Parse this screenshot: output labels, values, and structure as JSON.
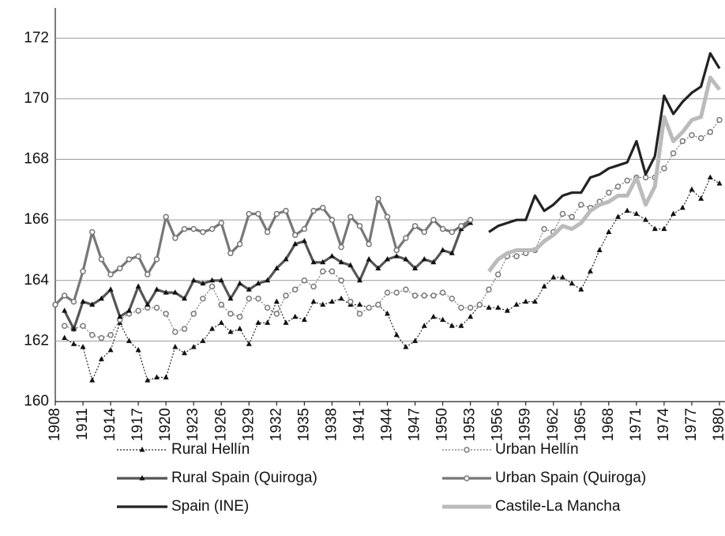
{
  "chart_data": {
    "type": "line",
    "x": [
      1908,
      1909,
      1910,
      1911,
      1912,
      1913,
      1914,
      1915,
      1916,
      1917,
      1918,
      1919,
      1920,
      1921,
      1922,
      1923,
      1924,
      1925,
      1926,
      1927,
      1928,
      1929,
      1930,
      1931,
      1932,
      1933,
      1934,
      1935,
      1936,
      1937,
      1938,
      1939,
      1940,
      1941,
      1942,
      1943,
      1944,
      1945,
      1946,
      1947,
      1948,
      1949,
      1950,
      1951,
      1952,
      1953,
      1954,
      1955,
      1956,
      1957,
      1958,
      1959,
      1960,
      1961,
      1962,
      1963,
      1964,
      1965,
      1966,
      1967,
      1968,
      1969,
      1970,
      1971,
      1972,
      1973,
      1974,
      1975,
      1976,
      1977,
      1978,
      1979,
      1980
    ],
    "xlim": [
      1908,
      1980.6
    ],
    "xticks": [
      1908,
      1911,
      1914,
      1917,
      1920,
      1923,
      1926,
      1929,
      1932,
      1935,
      1938,
      1941,
      1944,
      1947,
      1950,
      1953,
      1956,
      1959,
      1962,
      1965,
      1968,
      1971,
      1974,
      1977,
      1980
    ],
    "ylim": [
      160,
      173
    ],
    "yticks": [
      160,
      162,
      164,
      166,
      168,
      170,
      172
    ],
    "grid": true,
    "legend": "bottom",
    "series": [
      {
        "name": "Rural Hellín",
        "color": "#222222",
        "style": "dotted",
        "marker": "triangle",
        "values": [
          null,
          162.1,
          161.9,
          161.8,
          160.7,
          161.4,
          161.7,
          162.6,
          162.0,
          161.7,
          160.7,
          160.8,
          160.8,
          161.8,
          161.6,
          161.8,
          162.0,
          162.4,
          162.6,
          162.3,
          162.4,
          161.9,
          162.6,
          162.6,
          163.3,
          162.6,
          162.8,
          162.7,
          163.3,
          163.2,
          163.3,
          163.4,
          163.2,
          163.2,
          163.1,
          163.2,
          162.9,
          162.2,
          161.8,
          162.0,
          162.5,
          162.8,
          162.7,
          162.5,
          162.5,
          162.8,
          163.2,
          163.1,
          163.1,
          163.0,
          163.2,
          163.3,
          163.3,
          163.8,
          164.1,
          164.1,
          163.9,
          163.7,
          164.3,
          165.0,
          165.6,
          166.1,
          166.3,
          166.2,
          166.0,
          165.7,
          165.7,
          166.2,
          166.4,
          167.0,
          166.7,
          167.4,
          167.2
        ]
      },
      {
        "name": "Urban Hellín",
        "color": "#777777",
        "style": "dotted",
        "marker": "circle",
        "values": [
          null,
          162.5,
          162.4,
          162.5,
          162.2,
          162.1,
          162.2,
          162.7,
          162.9,
          163.0,
          163.1,
          163.1,
          162.9,
          162.3,
          162.4,
          162.9,
          163.4,
          163.8,
          163.2,
          162.9,
          162.8,
          163.4,
          163.4,
          163.1,
          162.9,
          163.5,
          163.7,
          164.0,
          163.8,
          164.3,
          164.3,
          164.0,
          163.3,
          162.9,
          163.1,
          163.2,
          163.6,
          163.6,
          163.7,
          163.5,
          163.5,
          163.5,
          163.6,
          163.4,
          163.1,
          163.1,
          163.2,
          163.7,
          164.2,
          164.8,
          164.8,
          164.9,
          165.0,
          165.7,
          165.6,
          166.2,
          166.1,
          166.5,
          166.4,
          166.6,
          166.9,
          167.1,
          167.3,
          167.4,
          167.4,
          167.4,
          167.7,
          168.2,
          168.6,
          168.8,
          168.7,
          168.9,
          169.3
        ]
      },
      {
        "name": "Rural Spain (Quiroga)",
        "color": "#555555",
        "style": "solid",
        "marker": "triangle",
        "values": [
          null,
          163.0,
          162.4,
          163.3,
          163.2,
          163.4,
          163.7,
          162.8,
          163.0,
          163.8,
          163.2,
          163.7,
          163.6,
          163.6,
          163.4,
          164.0,
          163.9,
          164.0,
          164.0,
          163.4,
          163.9,
          163.7,
          163.9,
          164.0,
          164.4,
          164.7,
          165.2,
          165.3,
          164.6,
          164.6,
          164.8,
          164.6,
          164.5,
          164.0,
          164.7,
          164.4,
          164.7,
          164.8,
          164.7,
          164.4,
          164.7,
          164.6,
          165.0,
          164.9,
          165.7,
          165.9,
          null,
          null,
          null,
          null,
          null,
          null,
          null,
          null,
          null,
          null,
          null,
          null,
          null,
          null,
          null,
          null,
          null,
          null,
          null,
          null,
          null,
          null,
          null,
          null,
          null,
          null,
          null
        ]
      },
      {
        "name": "Urban Spain (Quiroga)",
        "color": "#777777",
        "style": "solid",
        "marker": "circle",
        "values": [
          163.2,
          163.5,
          163.3,
          164.3,
          165.6,
          164.7,
          164.2,
          164.4,
          164.7,
          164.8,
          164.2,
          164.7,
          166.1,
          165.4,
          165.7,
          165.7,
          165.6,
          165.7,
          165.9,
          164.9,
          165.2,
          166.2,
          166.2,
          165.6,
          166.2,
          166.3,
          165.5,
          165.7,
          166.3,
          166.4,
          166.0,
          165.1,
          166.1,
          165.8,
          165.2,
          166.7,
          166.1,
          165.0,
          165.4,
          165.8,
          165.6,
          166.0,
          165.7,
          165.6,
          165.8,
          166.0,
          null,
          null,
          null,
          null,
          null,
          null,
          null,
          null,
          null,
          null,
          null,
          null,
          null,
          null,
          null,
          null,
          null,
          null,
          null,
          null,
          null,
          null,
          null,
          null,
          null,
          null,
          null
        ]
      },
      {
        "name": "Spain (INE)",
        "color": "#222222",
        "style": "solid",
        "marker": "none",
        "values": [
          null,
          null,
          null,
          null,
          null,
          null,
          null,
          null,
          null,
          null,
          null,
          null,
          null,
          null,
          null,
          null,
          null,
          null,
          null,
          null,
          null,
          null,
          null,
          null,
          null,
          null,
          null,
          null,
          null,
          null,
          null,
          null,
          null,
          null,
          null,
          null,
          null,
          null,
          null,
          null,
          null,
          null,
          null,
          null,
          null,
          null,
          null,
          165.6,
          165.8,
          165.9,
          166.0,
          166.0,
          166.8,
          166.3,
          166.5,
          166.8,
          166.9,
          166.9,
          167.4,
          167.5,
          167.7,
          167.8,
          167.9,
          168.6,
          167.5,
          168.1,
          170.1,
          169.5,
          169.9,
          170.2,
          170.4,
          171.5,
          171.0
        ]
      },
      {
        "name": "Castile-La Mancha",
        "color": "#bbbbbb",
        "style": "thick",
        "marker": "none",
        "values": [
          null,
          null,
          null,
          null,
          null,
          null,
          null,
          null,
          null,
          null,
          null,
          null,
          null,
          null,
          null,
          null,
          null,
          null,
          null,
          null,
          null,
          null,
          null,
          null,
          null,
          null,
          null,
          null,
          null,
          null,
          null,
          null,
          null,
          null,
          null,
          null,
          null,
          null,
          null,
          null,
          null,
          null,
          null,
          null,
          null,
          null,
          null,
          164.3,
          164.7,
          164.9,
          165.0,
          165.0,
          165.0,
          165.3,
          165.5,
          165.8,
          165.7,
          165.9,
          166.3,
          166.5,
          166.6,
          166.8,
          166.8,
          167.4,
          166.5,
          167.1,
          169.4,
          168.6,
          168.9,
          169.3,
          169.4,
          170.7,
          170.3
        ]
      }
    ]
  }
}
